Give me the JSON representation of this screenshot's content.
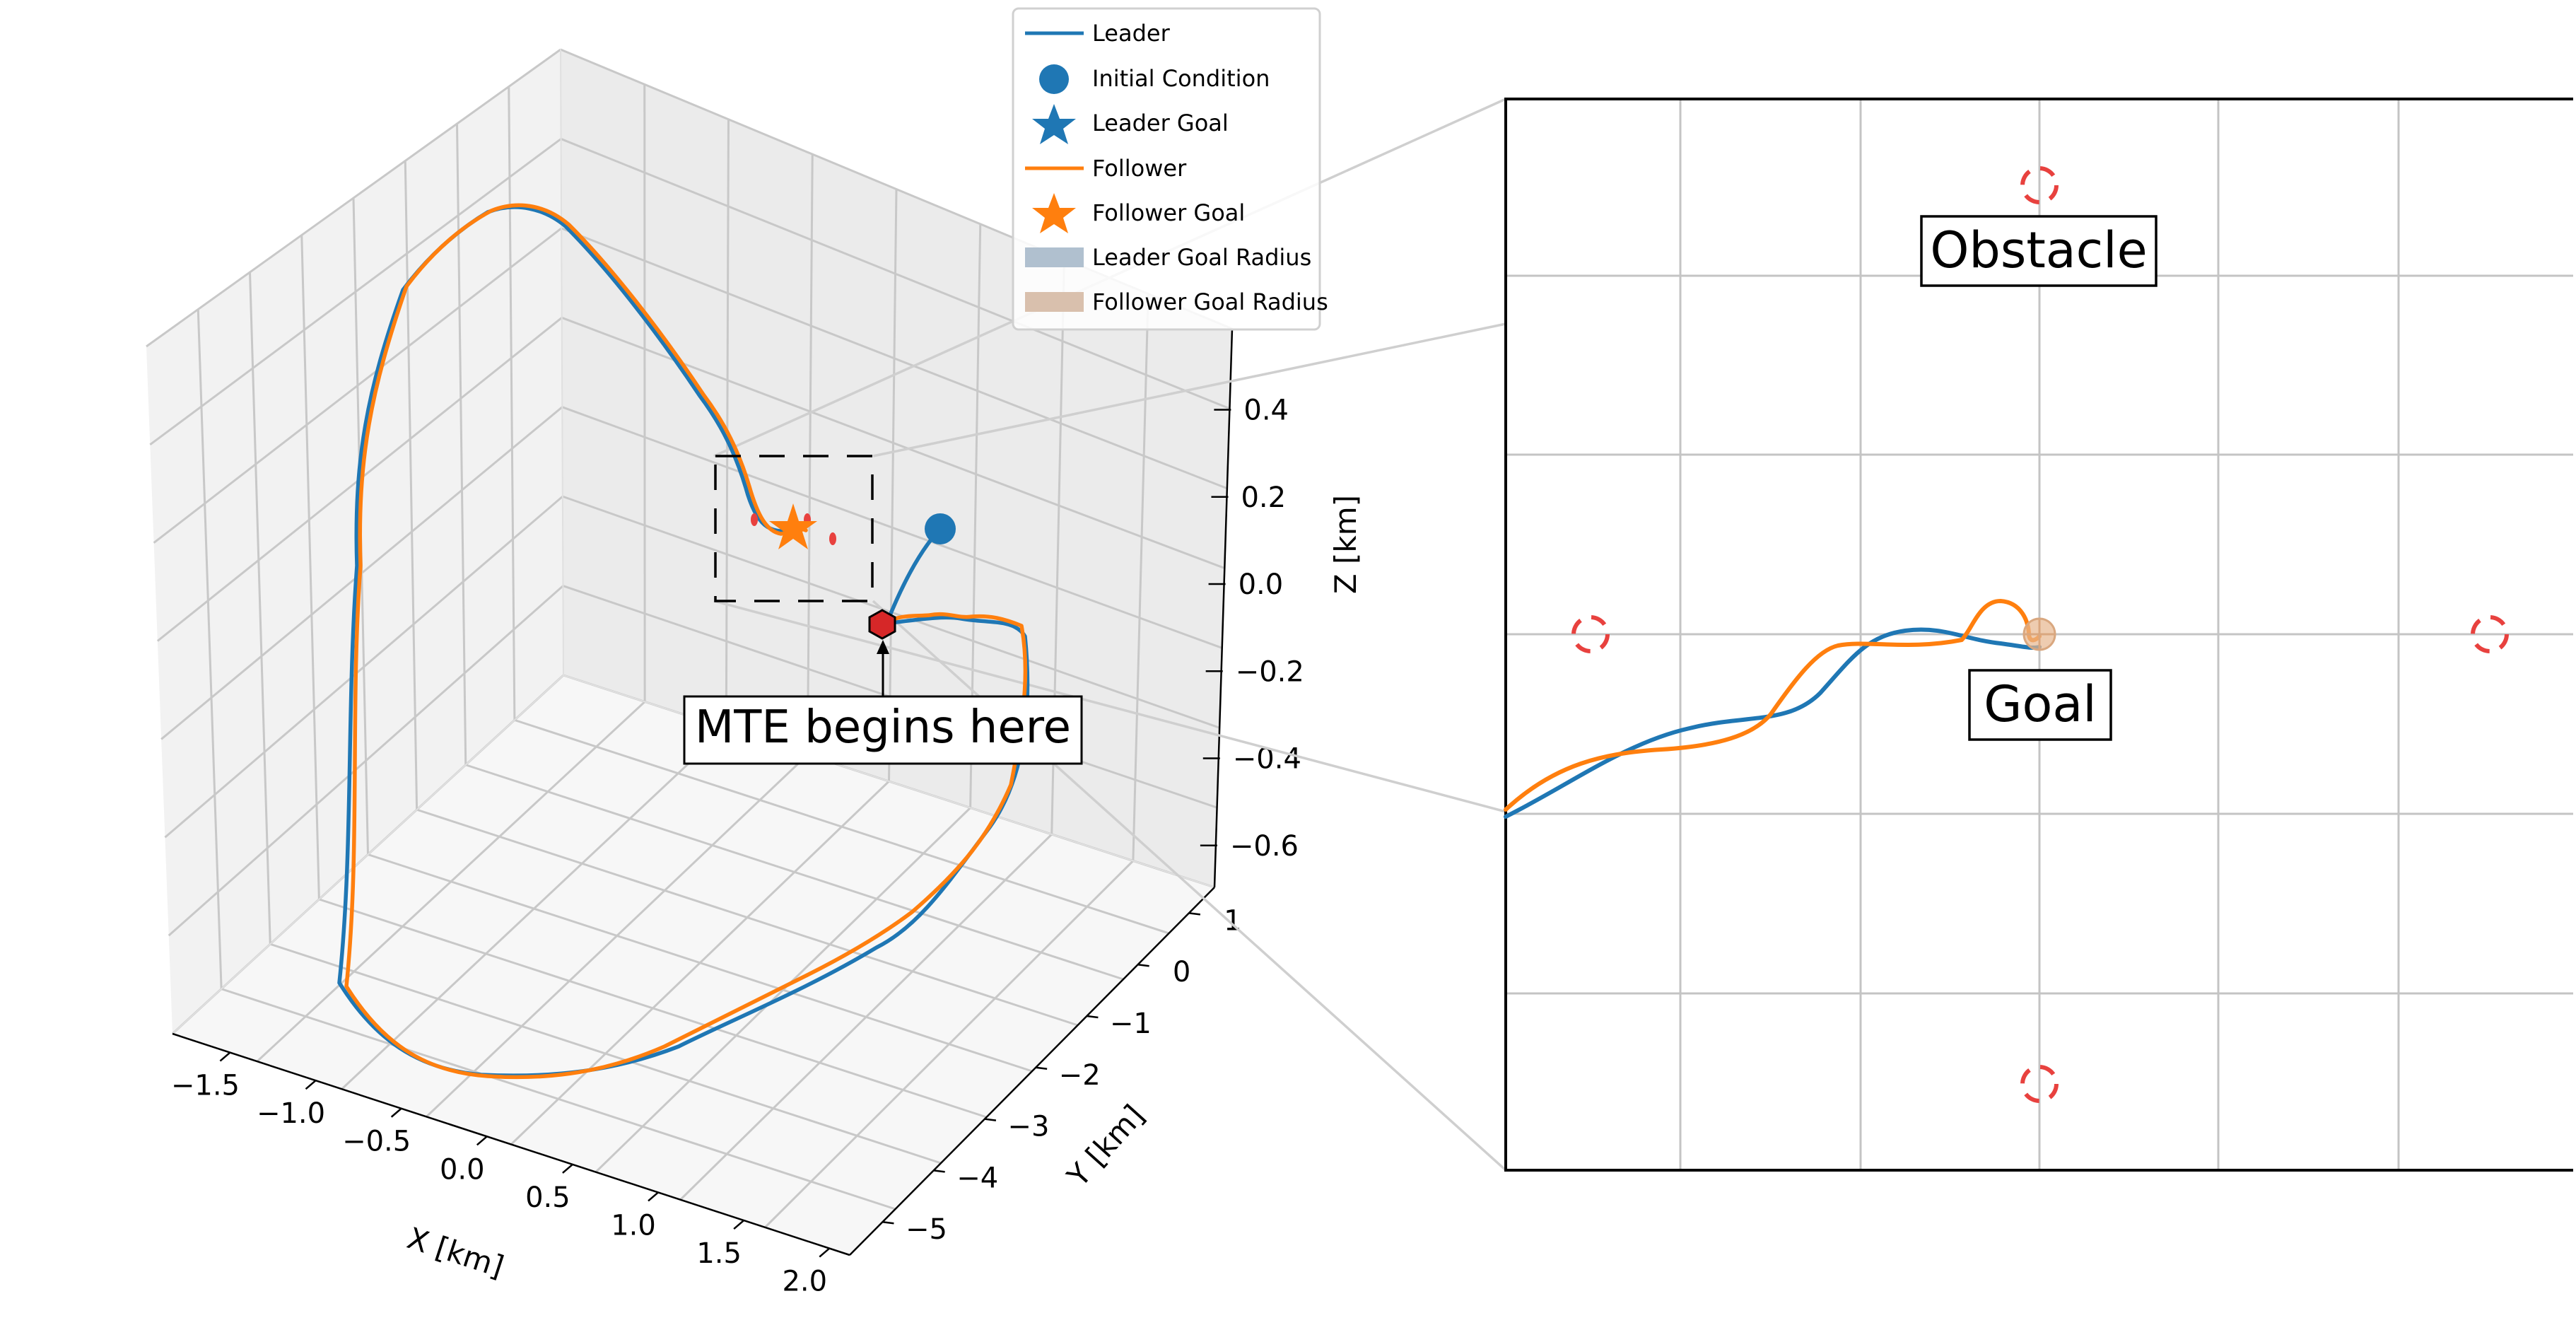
{
  "chart_data": [
    {
      "type": "line",
      "view": "3d",
      "series": [
        {
          "name": "Leader",
          "color": "#1f77b4"
        },
        {
          "name": "Follower",
          "color": "#ff7f0e"
        }
      ],
      "markers": [
        {
          "name": "Initial Condition",
          "color": "#1f77b4",
          "shape": "circle"
        },
        {
          "name": "Leader Goal",
          "color": "#1f77b4",
          "shape": "star"
        },
        {
          "name": "Follower Goal",
          "color": "#ff7f0e",
          "shape": "star"
        },
        {
          "name": "Leader Goal Radius",
          "color": "#b0c0cf",
          "shape": "patch"
        },
        {
          "name": "Follower Goal Radius",
          "color": "#d9c0ad",
          "shape": "patch"
        }
      ],
      "legend_placement": "top-right",
      "xlabel": "X [km]",
      "ylabel": "Y [km]",
      "zlabel": "Z [km]",
      "xticks": [
        "−1.5",
        "−1.0",
        "−0.5",
        "0.0",
        "0.5",
        "1.0",
        "1.5",
        "2.0"
      ],
      "yticks": [
        "1",
        "0",
        "−1",
        "−2",
        "−3",
        "−4",
        "−5"
      ],
      "zticks": [
        "0.4",
        "0.2",
        "0.0",
        "−0.2",
        "−0.4",
        "−0.6"
      ],
      "annotations": [
        {
          "text": "MTE begins here",
          "marker": "hexagon",
          "color": "#d62728"
        }
      ],
      "grid": true
    },
    {
      "type": "line",
      "view": "inset zoom of goal region",
      "series": [
        {
          "name": "Leader",
          "color": "#1f77b4"
        },
        {
          "name": "Follower",
          "color": "#ff7f0e"
        }
      ],
      "labels": [
        "Obstacle",
        "Goal"
      ],
      "obstacle_color": "#e8413e",
      "grid": true
    }
  ]
}
